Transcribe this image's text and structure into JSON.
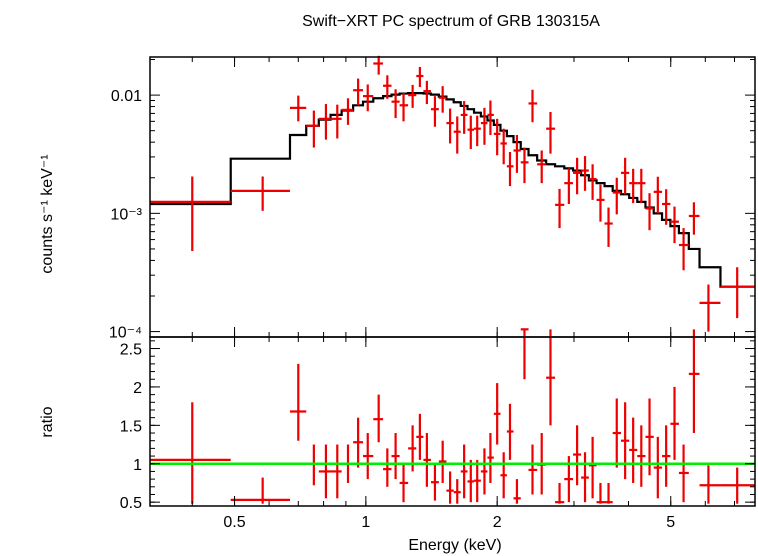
{
  "chart_data": {
    "type": "scatter",
    "title": "Swift−XRT PC spectrum of GRB 130315A",
    "xlabel": "Energy (keV)",
    "xscale": "log",
    "xlim": [
      0.32,
      7.8
    ],
    "x_ticks": [
      {
        "value": 0.5,
        "label": "0.5"
      },
      {
        "value": 1,
        "label": "1"
      },
      {
        "value": 2,
        "label": "2"
      },
      {
        "value": 5,
        "label": "5"
      }
    ],
    "colors": {
      "data": "#ee0000",
      "model": "#000000",
      "unity": "#00ee00",
      "axes": "#000000"
    },
    "panels": [
      {
        "name": "spectrum",
        "ylabel": "counts s⁻¹ keV⁻¹",
        "yscale": "log",
        "ylim": [
          9e-05,
          0.021
        ],
        "y_ticks": [
          {
            "value": 0.01,
            "label": "0.01"
          },
          {
            "value": 0.001,
            "label": "10⁻³"
          },
          {
            "value": 0.0001,
            "label": "10⁻⁴"
          }
        ],
        "series": [
          {
            "kind": "data",
            "x": [
              0.4,
              0.58,
              0.7,
              0.76,
              0.81,
              0.86,
              0.91,
              0.96,
              1.01,
              1.07,
              1.12,
              1.17,
              1.22,
              1.28,
              1.33,
              1.38,
              1.44,
              1.5,
              1.56,
              1.62,
              1.68,
              1.74,
              1.8,
              1.87,
              1.93,
              2.0,
              2.07,
              2.14,
              2.22,
              2.31,
              2.41,
              2.53,
              2.65,
              2.78,
              2.92,
              3.05,
              3.18,
              3.31,
              3.45,
              3.6,
              3.76,
              3.93,
              4.1,
              4.28,
              4.47,
              4.67,
              4.88,
              5.1,
              5.35,
              5.65,
              6.1,
              7.1
            ],
            "xlo": [
              0.32,
              0.49,
              0.67,
              0.73,
              0.78,
              0.83,
              0.88,
              0.935,
              0.985,
              1.04,
              1.095,
              1.145,
              1.195,
              1.25,
              1.305,
              1.355,
              1.41,
              1.47,
              1.53,
              1.59,
              1.65,
              1.71,
              1.77,
              1.835,
              1.9,
              1.965,
              2.035,
              2.105,
              2.18,
              2.265,
              2.36,
              2.47,
              2.59,
              2.715,
              2.85,
              2.985,
              3.115,
              3.245,
              3.38,
              3.525,
              3.68,
              3.845,
              4.015,
              4.19,
              4.375,
              4.57,
              4.775,
              4.99,
              5.22,
              5.5,
              5.82,
              6.5
            ],
            "xhi": [
              0.49,
              0.67,
              0.73,
              0.78,
              0.83,
              0.88,
              0.935,
              0.985,
              1.04,
              1.095,
              1.145,
              1.195,
              1.25,
              1.305,
              1.355,
              1.41,
              1.47,
              1.53,
              1.59,
              1.65,
              1.71,
              1.77,
              1.835,
              1.9,
              1.965,
              2.035,
              2.105,
              2.18,
              2.265,
              2.36,
              2.47,
              2.59,
              2.715,
              2.85,
              2.985,
              3.115,
              3.245,
              3.38,
              3.525,
              3.68,
              3.845,
              4.015,
              4.19,
              4.375,
              4.57,
              4.775,
              4.99,
              5.22,
              5.5,
              5.82,
              6.5,
              7.8
            ],
            "y": [
              0.00125,
              0.00155,
              0.0078,
              0.0055,
              0.0063,
              0.0063,
              0.0075,
              0.011,
              0.0098,
              0.0185,
              0.012,
              0.0088,
              0.0082,
              0.01,
              0.0145,
              0.0108,
              0.0076,
              0.0095,
              0.0058,
              0.0049,
              0.0068,
              0.0051,
              0.0052,
              0.0058,
              0.0068,
              0.0047,
              0.0039,
              0.0025,
              0.0034,
              0.0027,
              0.0085,
              0.0026,
              0.0052,
              0.00118,
              0.0018,
              0.0022,
              0.0023,
              0.00195,
              0.0013,
              0.00082,
              0.0015,
              0.0022,
              0.0018,
              0.0018,
              0.0011,
              0.00152,
              0.0012,
              0.00085,
              0.00054,
              0.00095,
              0.000175,
              0.00024
            ],
            "ylo": [
              0.00048,
              0.00105,
              0.006,
              0.0036,
              0.0042,
              0.0043,
              0.0056,
              0.0082,
              0.0073,
              0.0149,
              0.0093,
              0.0064,
              0.006,
              0.0078,
              0.0117,
              0.0084,
              0.0054,
              0.0071,
              0.0039,
              0.0032,
              0.0047,
              0.0035,
              0.0037,
              0.0038,
              0.0046,
              0.0031,
              0.0026,
              0.0017,
              0.0022,
              0.0018,
              0.0059,
              0.0018,
              0.0032,
              0.00075,
              0.0012,
              0.00145,
              0.00155,
              0.0013,
              0.00085,
              0.00052,
              0.00098,
              0.00145,
              0.00122,
              0.00122,
              0.00072,
              0.001,
              0.0008,
              0.00056,
              0.00033,
              0.00066,
              0.0001,
              0.00013
            ],
            "yhi": [
              0.00205,
              0.00205,
              0.0099,
              0.0074,
              0.0084,
              0.0083,
              0.0094,
              0.0138,
              0.0123,
              0.0215,
              0.0147,
              0.0112,
              0.0104,
              0.0122,
              0.0173,
              0.0132,
              0.0098,
              0.0119,
              0.0077,
              0.0066,
              0.0089,
              0.0067,
              0.0067,
              0.0078,
              0.009,
              0.0063,
              0.0052,
              0.0033,
              0.0046,
              0.0036,
              0.0111,
              0.0034,
              0.0072,
              0.00161,
              0.0024,
              0.00295,
              0.00305,
              0.0026,
              0.00175,
              0.00112,
              0.002,
              0.00295,
              0.00238,
              0.00238,
              0.00148,
              0.00204,
              0.0016,
              0.00114,
              0.00075,
              0.00124,
              0.00025,
              0.00035
            ]
          },
          {
            "kind": "model",
            "bins": [
              0.32,
              0.49,
              0.67,
              0.73,
              0.78,
              0.83,
              0.88,
              0.935,
              0.985,
              1.04,
              1.095,
              1.145,
              1.195,
              1.25,
              1.305,
              1.355,
              1.41,
              1.47,
              1.53,
              1.59,
              1.65,
              1.71,
              1.77,
              1.835,
              1.9,
              1.965,
              2.035,
              2.105,
              2.18,
              2.265,
              2.36,
              2.47,
              2.59,
              2.715,
              2.85,
              2.985,
              3.115,
              3.245,
              3.38,
              3.525,
              3.68,
              3.845,
              4.015,
              4.19,
              4.375,
              4.57,
              4.775,
              4.99,
              5.22,
              5.5,
              5.82,
              6.5,
              7.8
            ],
            "values": [
              0.0012,
              0.0029,
              0.0046,
              0.0055,
              0.0062,
              0.0068,
              0.0074,
              0.0082,
              0.0088,
              0.0094,
              0.0098,
              0.0101,
              0.0103,
              0.0104,
              0.0104,
              0.0103,
              0.0101,
              0.0097,
              0.0092,
              0.0087,
              0.0081,
              0.0076,
              0.0071,
              0.0066,
              0.0061,
              0.0056,
              0.005,
              0.0045,
              0.004,
              0.0035,
              0.0031,
              0.0028,
              0.0026,
              0.0025,
              0.0024,
              0.0023,
              0.0021,
              0.0019,
              0.0018,
              0.0017,
              0.00155,
              0.00145,
              0.00135,
              0.00125,
              0.00112,
              0.001,
              0.00088,
              0.00078,
              0.00068,
              0.0005,
              0.00035,
              0.00024
            ]
          }
        ]
      },
      {
        "name": "ratio",
        "ylabel": "ratio",
        "yscale": "linear",
        "ylim": [
          0.45,
          2.65
        ],
        "y_ticks": [
          {
            "value": 0.5,
            "label": "0.5"
          },
          {
            "value": 1,
            "label": "1"
          },
          {
            "value": 1.5,
            "label": "1.5"
          },
          {
            "value": 2,
            "label": "2"
          },
          {
            "value": 2.5,
            "label": "2.5"
          }
        ],
        "reference_line": 1,
        "series": [
          {
            "kind": "data",
            "x": [
              0.4,
              0.58,
              0.7,
              0.76,
              0.81,
              0.86,
              0.91,
              0.96,
              1.01,
              1.07,
              1.12,
              1.17,
              1.22,
              1.28,
              1.33,
              1.38,
              1.44,
              1.5,
              1.56,
              1.62,
              1.68,
              1.74,
              1.8,
              1.87,
              1.93,
              2.0,
              2.07,
              2.14,
              2.22,
              2.31,
              2.41,
              2.53,
              2.65,
              2.78,
              2.92,
              3.05,
              3.18,
              3.31,
              3.45,
              3.6,
              3.76,
              3.93,
              4.1,
              4.28,
              4.47,
              4.67,
              4.88,
              5.1,
              5.35,
              5.65,
              6.1,
              7.1
            ],
            "xlo": [
              0.32,
              0.49,
              0.67,
              0.73,
              0.78,
              0.83,
              0.88,
              0.935,
              0.985,
              1.04,
              1.095,
              1.145,
              1.195,
              1.25,
              1.305,
              1.355,
              1.41,
              1.47,
              1.53,
              1.59,
              1.65,
              1.71,
              1.77,
              1.835,
              1.9,
              1.965,
              2.035,
              2.105,
              2.18,
              2.265,
              2.36,
              2.47,
              2.59,
              2.715,
              2.85,
              2.985,
              3.115,
              3.245,
              3.38,
              3.525,
              3.68,
              3.845,
              4.015,
              4.19,
              4.375,
              4.57,
              4.775,
              4.99,
              5.22,
              5.5,
              5.82,
              6.5
            ],
            "xhi": [
              0.49,
              0.67,
              0.73,
              0.78,
              0.83,
              0.88,
              0.935,
              0.985,
              1.04,
              1.095,
              1.145,
              1.195,
              1.25,
              1.305,
              1.355,
              1.41,
              1.47,
              1.53,
              1.59,
              1.65,
              1.71,
              1.77,
              1.835,
              1.9,
              1.965,
              2.035,
              2.105,
              2.18,
              2.265,
              2.36,
              2.47,
              2.59,
              2.715,
              2.85,
              2.985,
              3.115,
              3.245,
              3.38,
              3.525,
              3.68,
              3.845,
              4.015,
              4.19,
              4.375,
              4.57,
              4.775,
              4.99,
              5.22,
              5.5,
              5.82,
              6.5,
              7.8
            ],
            "y": [
              1.05,
              0.53,
              1.68,
              1.0,
              0.9,
              0.9,
              1.0,
              1.28,
              1.1,
              1.58,
              0.93,
              1.1,
              0.75,
              1.2,
              1.35,
              1.05,
              0.76,
              1.03,
              0.65,
              0.63,
              0.9,
              0.77,
              0.78,
              0.9,
              1.08,
              1.65,
              0.85,
              1.42,
              0.55,
              2.75,
              0.92,
              0.99,
              2.12,
              0.5,
              0.8,
              1.12,
              0.82,
              0.98,
              0.5,
              0.5,
              1.4,
              1.3,
              1.18,
              1.1,
              1.35,
              0.95,
              1.1,
              1.52,
              0.88,
              2.17,
              0.72,
              0.72
            ],
            "ylo": [
              0.48,
              0.48,
              1.3,
              0.72,
              0.55,
              0.55,
              0.75,
              0.95,
              0.8,
              1.28,
              0.7,
              0.8,
              0.5,
              0.9,
              1.05,
              0.7,
              0.52,
              0.75,
              0.48,
              0.48,
              0.55,
              0.5,
              0.5,
              0.6,
              0.75,
              1.25,
              0.55,
              1.05,
              0.48,
              2.1,
              0.6,
              0.6,
              1.5,
              0.48,
              0.5,
              0.72,
              0.5,
              0.55,
              0.48,
              0.48,
              0.95,
              0.8,
              0.75,
              0.7,
              0.85,
              0.55,
              0.7,
              1.05,
              0.5,
              1.4,
              0.48,
              0.48
            ],
            "yhi": [
              1.8,
              0.82,
              2.3,
              1.25,
              1.25,
              1.25,
              1.25,
              1.6,
              1.4,
              1.9,
              1.2,
              1.4,
              1.0,
              1.5,
              1.65,
              1.4,
              1.0,
              1.3,
              0.9,
              0.8,
              1.25,
              1.05,
              1.05,
              1.2,
              1.4,
              2.05,
              1.15,
              1.78,
              0.8,
              2.75,
              1.25,
              1.4,
              2.75,
              0.75,
              1.1,
              1.5,
              1.15,
              1.35,
              0.75,
              0.75,
              1.85,
              1.8,
              1.6,
              1.5,
              1.85,
              1.35,
              1.5,
              2.0,
              1.25,
              2.75,
              0.98,
              0.95
            ]
          }
        ]
      }
    ]
  }
}
